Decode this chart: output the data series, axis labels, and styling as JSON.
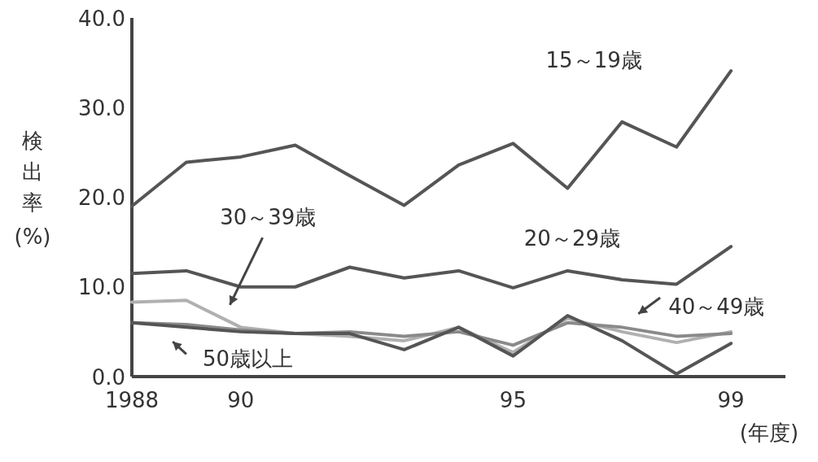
{
  "chart_data": {
    "type": "line",
    "ylabel": "検出率(%)",
    "xlabel": "(年度)",
    "x": [
      1988,
      1989,
      1990,
      1991,
      1992,
      1993,
      1994,
      1995,
      1996,
      1997,
      1998,
      1999
    ],
    "xlim": [
      1988,
      2000
    ],
    "xticks": [
      1988,
      {
        "value": 1990,
        "label": "90"
      },
      {
        "value": 1995,
        "label": "95"
      },
      {
        "value": 1999,
        "label": "99"
      }
    ],
    "ylim": [
      0,
      40
    ],
    "yticks": [
      {
        "value": 0,
        "label": "0.0"
      },
      {
        "value": 10,
        "label": "10.0"
      },
      {
        "value": 20,
        "label": "20.0"
      },
      {
        "value": 30,
        "label": "30.0"
      },
      {
        "value": 40,
        "label": "40.0"
      }
    ],
    "grid": false,
    "series": [
      {
        "name": "15～19歳",
        "color": "#555555",
        "values": [
          19.0,
          23.9,
          24.5,
          25.8,
          22.4,
          19.1,
          23.6,
          26.0,
          21.0,
          28.4,
          25.6,
          34.1
        ]
      },
      {
        "name": "20～29歳",
        "color": "#555555",
        "values": [
          11.5,
          11.8,
          10.0,
          10.0,
          12.2,
          11.0,
          11.8,
          9.9,
          11.8,
          10.8,
          10.3,
          14.5
        ]
      },
      {
        "name": "30～39歳",
        "color": "#b0b0b0",
        "values": [
          8.3,
          8.5,
          5.5,
          4.8,
          4.5,
          4.0,
          5.5,
          2.7,
          6.5,
          5.0,
          3.8,
          5.0
        ]
      },
      {
        "name": "40～49歳",
        "color": "#8a8a8a",
        "values": [
          6.0,
          5.8,
          5.2,
          4.8,
          5.0,
          4.5,
          5.0,
          3.5,
          6.0,
          5.5,
          4.5,
          4.8
        ]
      },
      {
        "name": "50歳以上",
        "color": "#555555",
        "values": [
          6.0,
          5.5,
          5.0,
          4.8,
          4.8,
          3.0,
          5.5,
          2.3,
          6.8,
          4.0,
          0.3,
          3.7
        ]
      }
    ]
  }
}
